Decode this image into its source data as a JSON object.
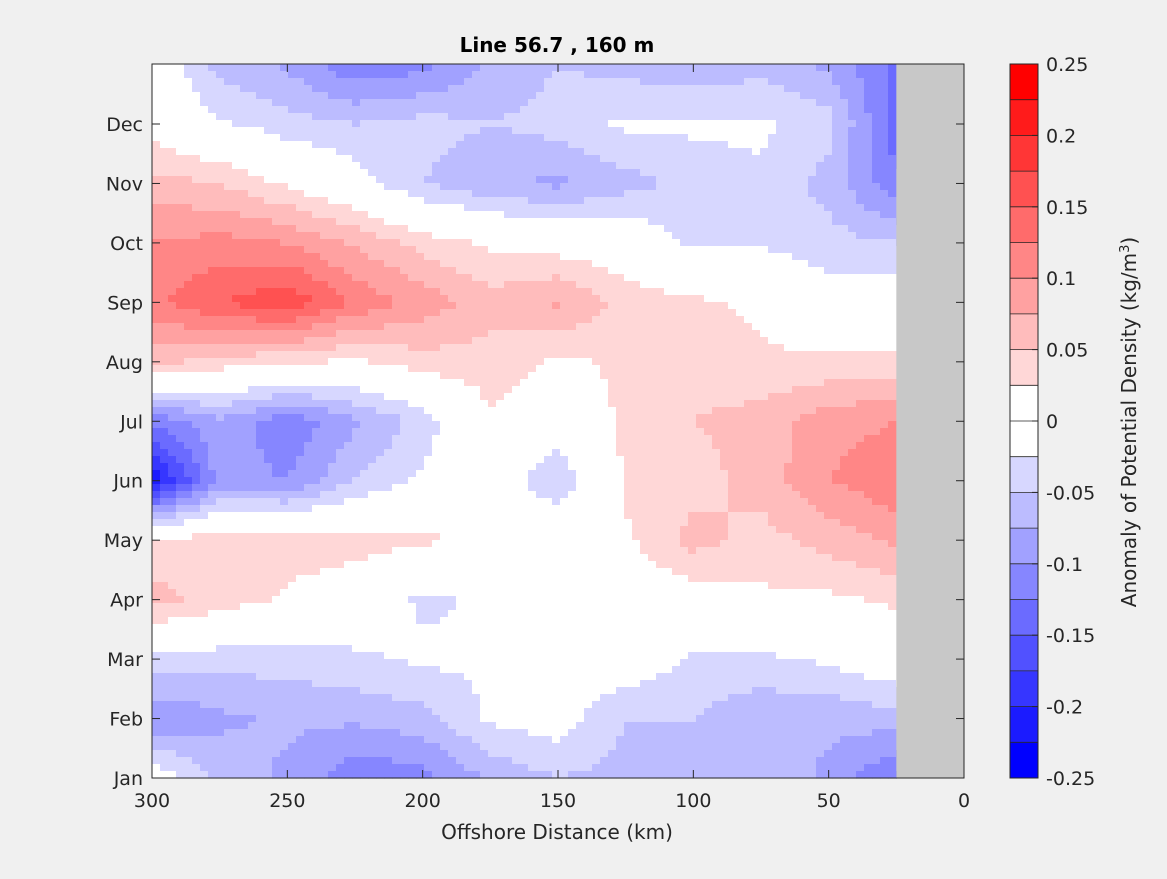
{
  "chart_data": {
    "type": "heatmap",
    "title": "Line 56.7 , 160 m",
    "xlabel": "Offshore Distance (km)",
    "xlim": [
      300,
      0
    ],
    "xticks": [
      "300",
      "250",
      "200",
      "150",
      "100",
      "50",
      "0"
    ],
    "yticks": [
      "Jan",
      "Feb",
      "Mar",
      "Apr",
      "May",
      "Jun",
      "Jul",
      "Aug",
      "Sep",
      "Oct",
      "Nov",
      "Dec"
    ],
    "colorbar": {
      "label_main": "Anomaly of Potential Density (kg/m",
      "label_sup": "3",
      "label_end": ")",
      "range": [
        -0.25,
        0.25
      ],
      "step": 0.025,
      "ticks": [
        "0.25",
        "0.2",
        "0.15",
        "0.1",
        "0.05",
        "0",
        "-0.05",
        "-0.1",
        "-0.15",
        "-0.2",
        "-0.25"
      ],
      "colormap": "blue-white-red",
      "low_color": "#0000ff",
      "high_color": "#ff0000"
    },
    "masked_region": {
      "x_from_km": 25,
      "x_to_km": 0,
      "color": "#c8c8c8"
    },
    "grid": false,
    "grid_x_km": [
      300,
      275,
      250,
      225,
      200,
      175,
      150,
      125,
      100,
      75,
      50,
      25
    ],
    "grid_month": [
      "Jan",
      "Feb",
      "Mar",
      "Apr",
      "May",
      "Jun",
      "Jul",
      "Aug",
      "Sep",
      "Oct",
      "Nov",
      "Dec",
      "Jan*"
    ],
    "values": [
      [
        0.0,
        -0.06,
        -0.08,
        -0.12,
        -0.11,
        -0.07,
        -0.05,
        -0.06,
        -0.07,
        -0.06,
        -0.08,
        -0.13
      ],
      [
        -0.1,
        -0.08,
        -0.07,
        -0.07,
        -0.06,
        -0.02,
        -0.01,
        -0.05,
        -0.05,
        -0.07,
        -0.07,
        -0.06
      ],
      [
        -0.03,
        -0.04,
        -0.04,
        -0.03,
        -0.02,
        -0.02,
        -0.01,
        0.0,
        -0.03,
        -0.03,
        -0.02,
        0.0
      ],
      [
        0.06,
        0.04,
        0.02,
        0.0,
        -0.03,
        -0.02,
        -0.02,
        0.0,
        0.01,
        0.02,
        0.02,
        0.03
      ],
      [
        0.03,
        0.04,
        0.04,
        0.04,
        0.03,
        0.02,
        0.01,
        0.02,
        0.06,
        0.04,
        0.06,
        0.08
      ],
      [
        -0.22,
        -0.09,
        -0.1,
        -0.05,
        -0.02,
        0.0,
        -0.05,
        0.03,
        0.04,
        0.06,
        0.1,
        0.12
      ],
      [
        -0.12,
        -0.08,
        -0.12,
        -0.08,
        -0.04,
        0.02,
        0.0,
        0.03,
        0.05,
        0.06,
        0.09,
        0.1
      ],
      [
        0.06,
        0.04,
        0.03,
        0.02,
        0.04,
        0.04,
        0.02,
        0.03,
        0.04,
        0.03,
        0.03,
        0.03
      ],
      [
        0.12,
        0.15,
        0.17,
        0.12,
        0.09,
        0.06,
        0.08,
        0.04,
        0.03,
        0.02,
        -0.01,
        0.0
      ],
      [
        0.1,
        0.11,
        0.1,
        0.07,
        0.04,
        0.02,
        0.01,
        0.0,
        -0.03,
        -0.03,
        -0.04,
        -0.05
      ],
      [
        0.06,
        0.05,
        0.02,
        -0.01,
        -0.05,
        -0.07,
        -0.08,
        -0.06,
        -0.04,
        -0.03,
        -0.06,
        -0.12
      ],
      [
        0.01,
        -0.02,
        -0.04,
        -0.05,
        -0.04,
        -0.05,
        -0.04,
        -0.02,
        -0.02,
        -0.02,
        -0.04,
        -0.14
      ],
      [
        0.0,
        -0.06,
        -0.08,
        -0.12,
        -0.11,
        -0.07,
        -0.05,
        -0.06,
        -0.07,
        -0.06,
        -0.08,
        -0.13
      ]
    ]
  }
}
